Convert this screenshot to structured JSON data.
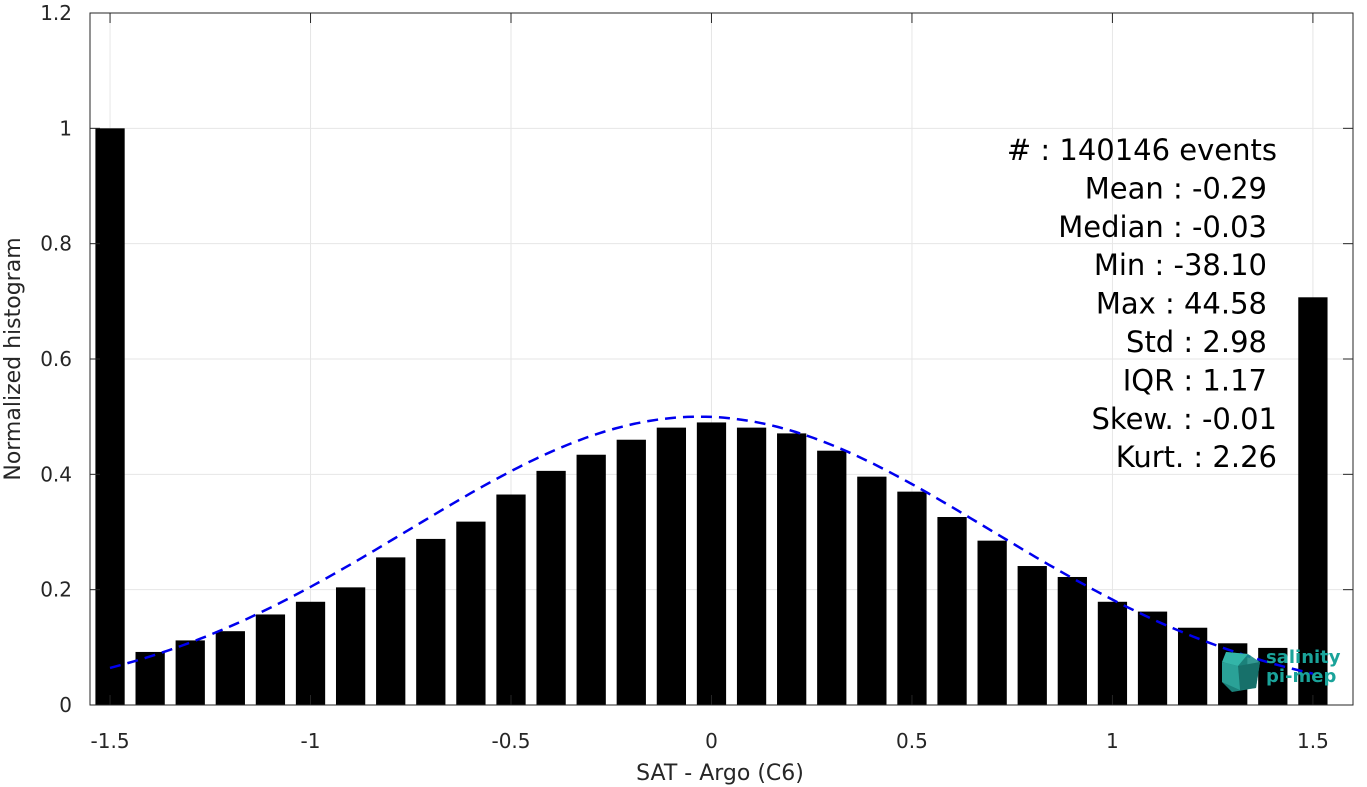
{
  "chart_data": {
    "type": "bar",
    "xlabel": "SAT - Argo (C6)",
    "ylabel": "Normalized histogram",
    "xlim": [
      -1.55,
      1.6
    ],
    "ylim": [
      0,
      1.2
    ],
    "x_ticks": [
      -1.5,
      -1,
      -0.5,
      0,
      0.5,
      1,
      1.5
    ],
    "x_tick_labels": [
      "-1.5",
      "-1",
      "-0.5",
      "0",
      "0.5",
      "1",
      "1.5"
    ],
    "y_ticks": [
      0,
      0.2,
      0.4,
      0.6,
      0.8,
      1,
      1.2
    ],
    "y_tick_labels": [
      "0",
      "0.2",
      "0.4",
      "0.6",
      "0.8",
      "1",
      "1.2"
    ],
    "grid": true,
    "bar_color": "#000000",
    "fit_color": "#0000ee",
    "bars": {
      "x": [
        -1.5,
        -1.4,
        -1.3,
        -1.2,
        -1.1,
        -1.0,
        -0.9,
        -0.8,
        -0.7,
        -0.6,
        -0.5,
        -0.4,
        -0.3,
        -0.2,
        -0.1,
        0.0,
        0.1,
        0.2,
        0.3,
        0.4,
        0.5,
        0.6,
        0.7,
        0.8,
        0.9,
        1.0,
        1.1,
        1.2,
        1.3,
        1.4,
        1.5
      ],
      "values": [
        1.0,
        0.092,
        0.112,
        0.128,
        0.157,
        0.179,
        0.204,
        0.256,
        0.288,
        0.318,
        0.365,
        0.406,
        0.434,
        0.46,
        0.481,
        0.49,
        0.481,
        0.471,
        0.441,
        0.396,
        0.37,
        0.326,
        0.285,
        0.241,
        0.222,
        0.179,
        0.162,
        0.134,
        0.107,
        0.099,
        0.707
      ]
    },
    "fit_curve": {
      "style": "dashed",
      "mean": -0.03,
      "peak": 0.5,
      "sigma": 0.726,
      "x_range": [
        -1.5,
        1.5
      ]
    },
    "annotations": [
      "#  : 140146 events",
      "Mean : -0.29",
      "Median : -0.03",
      "Min : -38.10",
      "Max : 44.58",
      "Std : 2.98",
      "IQR : 1.17",
      "Skew. : -0.01",
      "Kurt. : 2.26"
    ]
  },
  "logo": {
    "line1": "salinity",
    "line2": "pi-mep"
  }
}
